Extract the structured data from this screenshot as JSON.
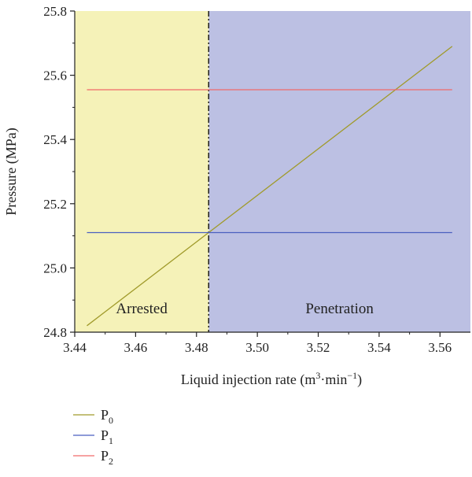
{
  "chart_data": {
    "type": "line",
    "xlabel": "Liquid injection rate (m",
    "xlabel_sup1": "3",
    "xlabel_mid": "·min",
    "xlabel_sup2": "−1",
    "xlabel_end": ")",
    "ylabel": "Pressure (MPa)",
    "xlim": [
      3.44,
      3.57
    ],
    "ylim": [
      24.8,
      25.8
    ],
    "x_ticks": [
      3.44,
      3.46,
      3.48,
      3.5,
      3.52,
      3.54,
      3.56
    ],
    "x_tick_labels": [
      "3.44",
      "3.46",
      "3.48",
      "3.50",
      "3.52",
      "3.54",
      "3.56"
    ],
    "y_ticks": [
      24.8,
      25.0,
      25.2,
      25.4,
      25.6,
      25.8
    ],
    "y_tick_labels": [
      "24.8",
      "25.0",
      "25.2",
      "25.4",
      "25.6",
      "25.8"
    ],
    "divider_x": 3.484,
    "regions": [
      {
        "label": "Arrested",
        "from": 3.44,
        "to": 3.484,
        "color": "#f5f2b8"
      },
      {
        "label": "Penetration",
        "from": 3.484,
        "to": 3.57,
        "color": "#bcc0e3"
      }
    ],
    "series": [
      {
        "name": "P",
        "sub": "0",
        "color": "#a09a2a",
        "x": [
          3.444,
          3.564
        ],
        "y": [
          24.82,
          25.69
        ]
      },
      {
        "name": "P",
        "sub": "1",
        "color": "#4a5fc0",
        "x": [
          3.444,
          3.564
        ],
        "y": [
          25.11,
          25.11
        ]
      },
      {
        "name": "P",
        "sub": "2",
        "color": "#f06a6a",
        "x": [
          3.444,
          3.564
        ],
        "y": [
          25.555,
          25.555
        ]
      }
    ],
    "legend_position": "bottom-left"
  }
}
